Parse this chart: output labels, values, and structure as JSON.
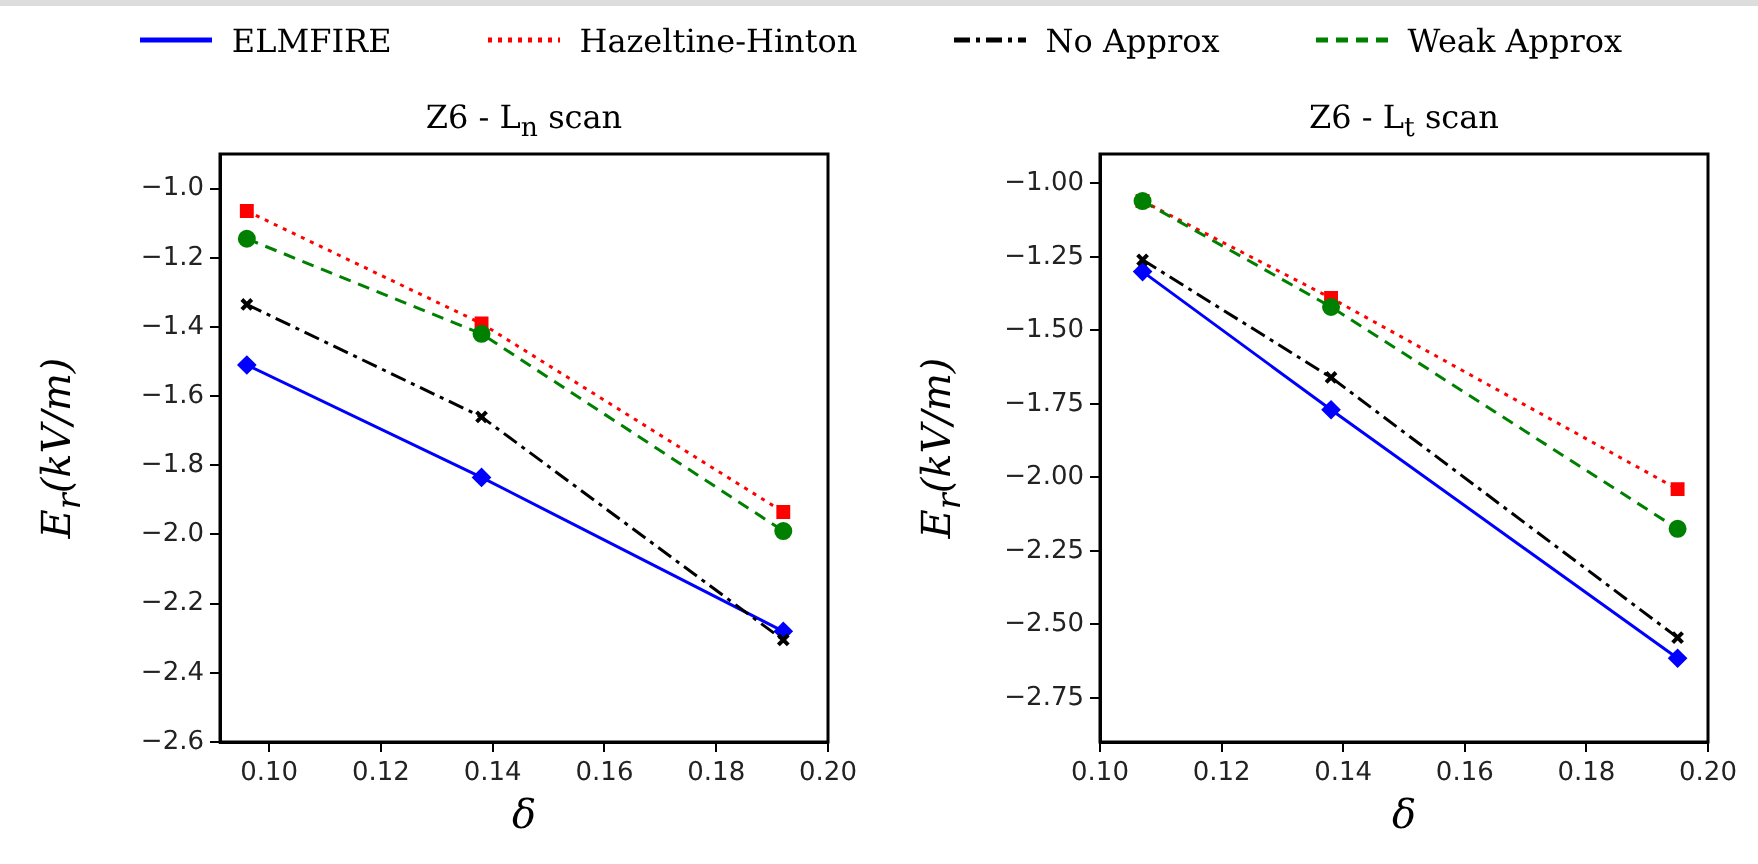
{
  "chart_data": [
    {
      "type": "line",
      "title": "Z6 - L$_{n}$ scan",
      "xlabel": "δ",
      "ylabel": "E$_{r}$(kV/m)",
      "legend": "top",
      "grid": false,
      "xlim": [
        0.0912,
        0.2
      ],
      "xticks": [
        {
          "value": 0.1,
          "label": "0.10"
        },
        {
          "value": 0.12,
          "label": "0.12"
        },
        {
          "value": 0.14,
          "label": "0.14"
        },
        {
          "value": 0.16,
          "label": "0.16"
        },
        {
          "value": 0.18,
          "label": "0.18"
        },
        {
          "value": 0.2,
          "label": "0.20"
        }
      ],
      "ylim": [
        -2.6,
        -0.9
      ],
      "yticks": [
        {
          "value": -1,
          "label": "−1.0"
        },
        {
          "value": -1.2,
          "label": "−1.2"
        },
        {
          "value": -1.4,
          "label": "−1.4"
        },
        {
          "value": -1.6,
          "label": "−1.6"
        },
        {
          "value": -1.8,
          "label": "−1.8"
        },
        {
          "value": -2,
          "label": "−2.0"
        },
        {
          "value": -2.2,
          "label": "−2.2"
        },
        {
          "value": -2.4,
          "label": "−2.4"
        },
        {
          "value": -2.6,
          "label": "−2.6"
        }
      ],
      "x": [
        0.096,
        0.138,
        0.192
      ],
      "series": [
        {
          "name": "ELMFIRE",
          "color": "#0000ff",
          "marker": "diamond",
          "line_style": "solid",
          "values": [
            -1.51,
            -1.835,
            -2.28
          ]
        },
        {
          "name": "Hazeltine-Hinton",
          "color": "#ff0000",
          "marker": "square",
          "line_style": "dotted",
          "values": [
            -1.065,
            -1.39,
            -1.935
          ]
        },
        {
          "name": "No Approx",
          "color": "#000000",
          "marker": "cross",
          "line_style": "dashdot",
          "values": [
            -1.335,
            -1.66,
            -2.305
          ]
        },
        {
          "name": "Weak Approx",
          "color": "#008000",
          "marker": "circle",
          "line_style": "dashed",
          "values": [
            -1.145,
            -1.42,
            -1.99
          ]
        }
      ]
    },
    {
      "type": "line",
      "title": "Z6 - L$_{t}$ scan",
      "xlabel": "δ",
      "ylabel": "E$_{r}$(kV/m)",
      "grid": false,
      "xlim": [
        0.1,
        0.2
      ],
      "xticks": [
        {
          "value": 0.1,
          "label": "0.10"
        },
        {
          "value": 0.12,
          "label": "0.12"
        },
        {
          "value": 0.14,
          "label": "0.14"
        },
        {
          "value": 0.16,
          "label": "0.16"
        },
        {
          "value": 0.18,
          "label": "0.18"
        },
        {
          "value": 0.2,
          "label": "0.20"
        }
      ],
      "ylim": [
        -2.9,
        -0.9
      ],
      "yticks": [
        {
          "value": -1,
          "label": "−1.00"
        },
        {
          "value": -1.25,
          "label": "−1.25"
        },
        {
          "value": -1.5,
          "label": "−1.50"
        },
        {
          "value": -1.75,
          "label": "−1.75"
        },
        {
          "value": -2,
          "label": "−2.00"
        },
        {
          "value": -2.25,
          "label": "−2.25"
        },
        {
          "value": -2.5,
          "label": "−2.50"
        },
        {
          "value": -2.75,
          "label": "−2.75"
        }
      ],
      "x": [
        0.107,
        0.138,
        0.195
      ],
      "series": [
        {
          "name": "ELMFIRE",
          "color": "#0000ff",
          "marker": "diamond",
          "line_style": "solid",
          "values": [
            -1.3,
            -1.77,
            -2.615
          ]
        },
        {
          "name": "Hazeltine-Hinton",
          "color": "#ff0000",
          "marker": "square",
          "line_style": "dotted",
          "values": [
            -1.06,
            -1.39,
            -2.04
          ]
        },
        {
          "name": "No Approx",
          "color": "#000000",
          "marker": "cross",
          "line_style": "dashdot",
          "values": [
            -1.26,
            -1.66,
            -2.545
          ]
        },
        {
          "name": "Weak Approx",
          "color": "#008000",
          "marker": "circle",
          "line_style": "dashed",
          "values": [
            -1.06,
            -1.42,
            -2.175
          ]
        }
      ]
    }
  ]
}
